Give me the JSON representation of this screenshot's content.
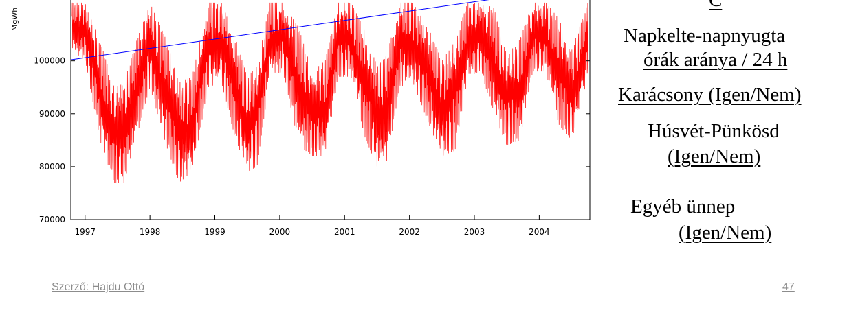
{
  "chart_data": {
    "type": "line",
    "ylabel": "MgWh",
    "ylim": [
      70000,
      111500
    ],
    "xlim": [
      1996.78,
      2004.78
    ],
    "y_ticks": [
      70000,
      80000,
      90000,
      100000
    ],
    "y_tick_labels": [
      "70000",
      "80000",
      "90000",
      "100000"
    ],
    "x_ticks": [
      1997,
      1998,
      1999,
      2000,
      2001,
      2002,
      2003,
      2004
    ],
    "x_tick_labels": [
      "1997",
      "1998",
      "1999",
      "2000",
      "2001",
      "2002",
      "2003",
      "2004"
    ],
    "grid": false,
    "series": [
      {
        "color": "#ff0000",
        "x": [
          1996.8,
          1997.0,
          1997.25,
          1997.45,
          1997.6,
          1997.8,
          1998.0,
          1998.25,
          1998.45,
          1998.65,
          1998.9,
          1999.1,
          1999.3,
          1999.5,
          1999.65,
          1999.85,
          2000.05,
          2000.3,
          2000.5,
          2000.7,
          2000.9,
          2001.1,
          2001.3,
          2001.5,
          2001.65,
          2001.85,
          2002.05,
          2002.3,
          2002.5,
          2002.7,
          2002.9,
          2003.1,
          2003.3,
          2003.5,
          2003.7,
          2003.9,
          2004.1,
          2004.3,
          2004.5,
          2004.75
        ],
        "upper": [
          111000,
          111000,
          103000,
          95000,
          96000,
          104000,
          111000,
          104000,
          96000,
          97000,
          111000,
          111000,
          105000,
          97000,
          99000,
          111000,
          111000,
          106000,
          98000,
          100000,
          111000,
          111000,
          106000,
          99000,
          101000,
          111000,
          111000,
          106000,
          100000,
          104000,
          111000,
          111000,
          110000,
          101000,
          104000,
          111000,
          111000,
          108000,
          102000,
          111000
        ],
        "lower": [
          102000,
          100000,
          84000,
          77000,
          77000,
          86000,
          95000,
          84000,
          77000,
          79000,
          95000,
          96000,
          86000,
          79000,
          80000,
          97000,
          98000,
          84000,
          82000,
          82000,
          97000,
          97000,
          86000,
          80000,
          81000,
          95000,
          96000,
          88000,
          82000,
          83000,
          97000,
          98000,
          90000,
          84000,
          85000,
          98000,
          98000,
          88000,
          85000,
          97000
        ]
      },
      {
        "color": "#0000ff",
        "x": [
          1996.78,
          2004.78
        ],
        "y": [
          100200,
          114300
        ]
      }
    ]
  },
  "side": {
    "letter": "C",
    "line1a": "Napkelte-napnyugta",
    "line1b": "órák aránya / 24 h",
    "line2": "Karácsony (Igen/Nem)",
    "line3a": "Húsvét-Pünkösd",
    "line3b": "(Igen/Nem)",
    "line4a": "Egyéb ünnep",
    "line4b": "(Igen/Nem)"
  },
  "footer": {
    "author": "Szerző: Hajdu Ottó",
    "page": "47"
  }
}
